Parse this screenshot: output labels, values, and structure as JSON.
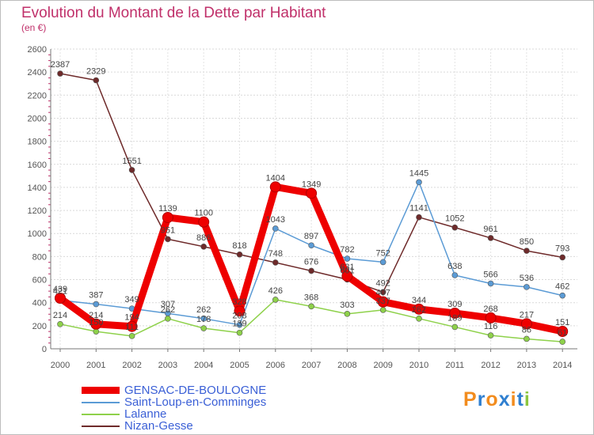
{
  "title": "Evolution du Montant de la Dette par Habitant",
  "subtitle": "(en €)",
  "logo": {
    "text": "Proxiti",
    "letters": [
      "P",
      "r",
      "o",
      "x",
      "i",
      "t",
      "i"
    ],
    "colors": [
      "#f28c1e",
      "#2f7fd0",
      "#f28c1e",
      "#2f7fd0",
      "#f28c1e",
      "#2f7fd0",
      "#8cc63f"
    ]
  },
  "chart_data": {
    "type": "line",
    "title": "Evolution du Montant de la Dette par Habitant",
    "subtitle": "(en €)",
    "x": [
      "2000",
      "2001",
      "2002",
      "2003",
      "2004",
      "2005",
      "2006",
      "2007",
      "2008",
      "2009",
      "2010",
      "2011",
      "2012",
      "2013",
      "2014"
    ],
    "ylim": [
      0,
      2600
    ],
    "yticks": [
      0,
      200,
      400,
      600,
      800,
      1000,
      1200,
      1400,
      1600,
      1800,
      2000,
      2200,
      2400,
      2600
    ],
    "grid": true,
    "legend_position": "bottom-left",
    "series": [
      {
        "name": "GENSAC-DE-BOULOGNE",
        "color": "#ee0000",
        "values": [
          439,
          214,
          194,
          1139,
          1100,
          328,
          1404,
          1349,
          631,
          407,
          344,
          309,
          268,
          217,
          151
        ],
        "labels": [
          "439",
          "214",
          "194",
          "1139",
          "1100",
          "328",
          "1404",
          "1349",
          "631",
          "407",
          "344",
          "309",
          "268",
          "217",
          "151"
        ]
      },
      {
        "name": "Saint-Loup-en-Comminges",
        "color": "#5b9bd5",
        "values": [
          421,
          387,
          349,
          307,
          262,
          208,
          1043,
          897,
          782,
          752,
          1445,
          638,
          566,
          536,
          462
        ],
        "labels": [
          "421",
          "387",
          "349",
          "307",
          "262",
          "208",
          "1043",
          "897",
          "782",
          "752",
          "1445",
          "638",
          "566",
          "536",
          "462"
        ]
      },
      {
        "name": "Lalanne",
        "color": "#8ed14a",
        "values": [
          214,
          150,
          111,
          262,
          178,
          139,
          426,
          368,
          303,
          337,
          262,
          189,
          116,
          86,
          61
        ],
        "labels": [
          "214",
          "150",
          "111",
          "262",
          "178",
          "139",
          "426",
          "368",
          "303",
          "337",
          "262",
          "189",
          "116",
          "86",
          "61"
        ]
      },
      {
        "name": "Nizan-Gesse",
        "color": "#6e2a2a",
        "values": [
          2387,
          2329,
          1551,
          951,
          886,
          818,
          748,
          676,
          601,
          492,
          1141,
          1052,
          961,
          850,
          793
        ],
        "labels": [
          "2387",
          "2329",
          "1551",
          "951",
          "886",
          "818",
          "748",
          "676",
          "601",
          "492",
          "1141",
          "1052",
          "961",
          "850",
          "793"
        ]
      }
    ]
  }
}
